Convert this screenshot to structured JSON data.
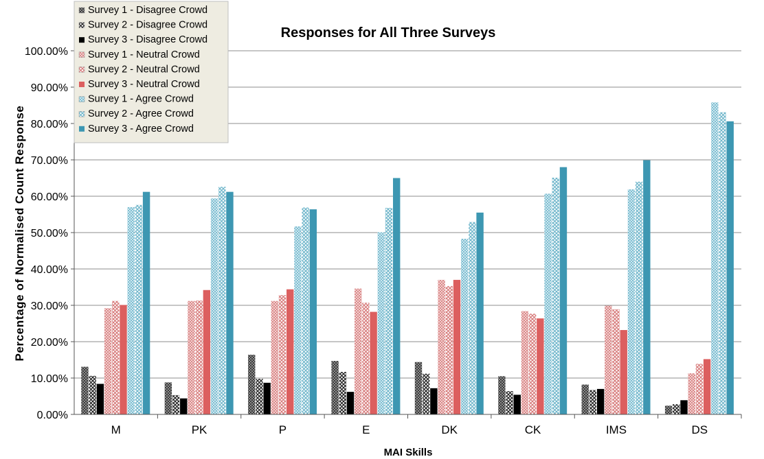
{
  "chart_data": {
    "type": "bar",
    "title": "Responses for All  Three Surveys",
    "xlabel": "MAI Skills",
    "ylabel": "Percentage of Normalised Count Response",
    "categories": [
      "M",
      "PK",
      "P",
      "E",
      "DK",
      "CK",
      "IMS",
      "DS"
    ],
    "ylim": [
      0,
      1.0
    ],
    "y_tick_labels": [
      "0.00%",
      "10.00%",
      "20.00%",
      "30.00%",
      "40.00%",
      "50.00%",
      "60.00%",
      "70.00%",
      "80.00%",
      "90.00%",
      "100.00%"
    ],
    "grid": true,
    "legend_position": "top-left",
    "series": [
      {
        "name": "Survey 1 - Disagree Crowd",
        "color": "#595959",
        "pattern": "dots-dark",
        "values": [
          0.131,
          0.088,
          0.164,
          0.147,
          0.144,
          0.105,
          0.082,
          0.024
        ]
      },
      {
        "name": "Survey 2 - Disagree Crowd",
        "color": "#404040",
        "pattern": "cross-dark",
        "values": [
          0.106,
          0.053,
          0.098,
          0.117,
          0.112,
          0.064,
          0.067,
          0.028
        ]
      },
      {
        "name": "Survey 3 - Disagree Crowd",
        "color": "#000000",
        "pattern": "solid",
        "values": [
          0.084,
          0.044,
          0.087,
          0.062,
          0.072,
          0.054,
          0.07,
          0.039
        ]
      },
      {
        "name": "Survey 1 - Neutral Crowd",
        "color": "#e6a9a9",
        "pattern": "dots-red",
        "values": [
          0.292,
          0.312,
          0.312,
          0.346,
          0.37,
          0.284,
          0.299,
          0.113
        ]
      },
      {
        "name": "Survey 2 - Neutral Crowd",
        "color": "#e8a0a0",
        "pattern": "cross-red",
        "values": [
          0.312,
          0.313,
          0.328,
          0.307,
          0.353,
          0.277,
          0.289,
          0.139
        ]
      },
      {
        "name": "Survey 3 - Neutral Crowd",
        "color": "#dc5f5f",
        "pattern": "solid",
        "values": [
          0.301,
          0.342,
          0.344,
          0.282,
          0.37,
          0.264,
          0.232,
          0.152
        ]
      },
      {
        "name": "Survey 1 - Agree Crowd",
        "color": "#8cc6d6",
        "pattern": "dots-blue",
        "values": [
          0.57,
          0.594,
          0.517,
          0.501,
          0.483,
          0.607,
          0.619,
          0.858
        ]
      },
      {
        "name": "Survey 2 - Agree Crowd",
        "color": "#9ccfdc",
        "pattern": "cross-blue",
        "values": [
          0.576,
          0.626,
          0.569,
          0.568,
          0.529,
          0.651,
          0.64,
          0.831
        ]
      },
      {
        "name": "Survey 3 - Agree Crowd",
        "color": "#3d97b2",
        "pattern": "solid",
        "values": [
          0.612,
          0.612,
          0.564,
          0.65,
          0.555,
          0.68,
          0.699,
          0.806
        ]
      }
    ]
  }
}
